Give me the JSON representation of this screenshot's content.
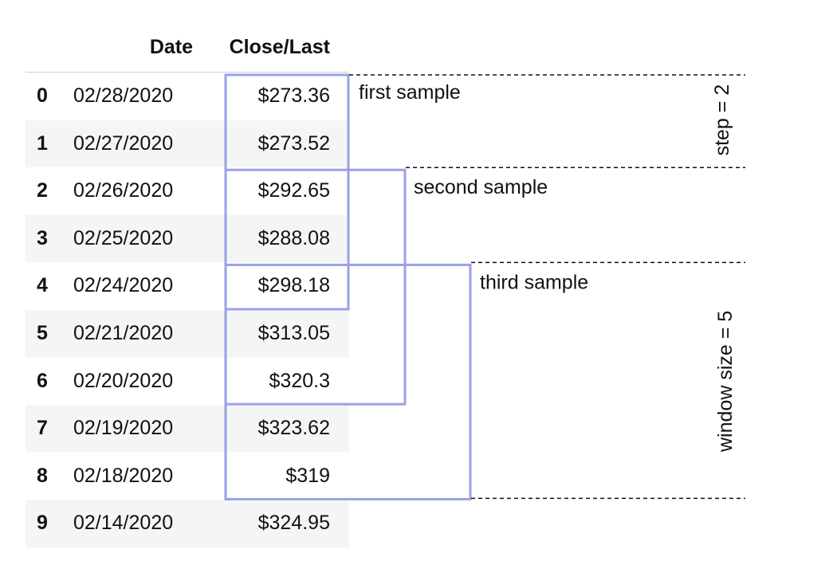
{
  "table": {
    "columns": [
      "Date",
      "Close/Last"
    ],
    "rows": [
      {
        "index": "0",
        "date": "02/28/2020",
        "close": "$273.36"
      },
      {
        "index": "1",
        "date": "02/27/2020",
        "close": "$273.52"
      },
      {
        "index": "2",
        "date": "02/26/2020",
        "close": "$292.65"
      },
      {
        "index": "3",
        "date": "02/25/2020",
        "close": "$288.08"
      },
      {
        "index": "4",
        "date": "02/24/2020",
        "close": "$298.18"
      },
      {
        "index": "5",
        "date": "02/21/2020",
        "close": "$313.05"
      },
      {
        "index": "6",
        "date": "02/20/2020",
        "close": "$320.3"
      },
      {
        "index": "7",
        "date": "02/19/2020",
        "close": "$323.62"
      },
      {
        "index": "8",
        "date": "02/18/2020",
        "close": "$319"
      },
      {
        "index": "9",
        "date": "02/14/2020",
        "close": "$324.95"
      }
    ]
  },
  "windows": [
    {
      "label": "first sample",
      "start_row": 0,
      "size": 5
    },
    {
      "label": "second sample",
      "start_row": 2,
      "size": 5
    },
    {
      "label": "third sample",
      "start_row": 4,
      "size": 5
    }
  ],
  "annotations": {
    "step": {
      "label": "step = 2",
      "from_row": 0,
      "to_row": 2
    },
    "window_size": {
      "label": "window size = 5",
      "from_row": 4,
      "to_row": 9
    }
  },
  "colors": {
    "window_box": "#9aa0ea",
    "dashed": "#111111",
    "row_shade": "#f5f5f5"
  }
}
